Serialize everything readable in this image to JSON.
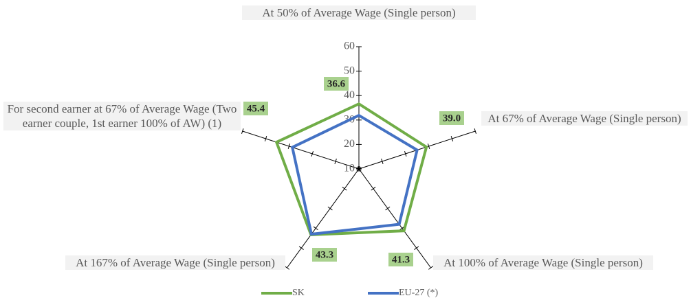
{
  "chart_data": {
    "type": "radar",
    "categories": [
      "At 50% of Average Wage (Single person)",
      "At 67% of Average Wage (Single person)",
      "At 100% of Average Wage (Single person)",
      "At 167% of Average Wage (Single person)",
      "For second earner at 67% of Average Wage (Two earner couple, 1st earner 100% of AW) (1)"
    ],
    "series": [
      {
        "name": "SK",
        "color": "#70ad47",
        "values": [
          36.6,
          39.0,
          41.3,
          43.3,
          45.4
        ],
        "value_labels": [
          "36.6",
          "39.0",
          "41.3",
          "43.3",
          "45.4"
        ]
      },
      {
        "name": "EU-27 (*)",
        "color": "#4472c4",
        "values": [
          31.9,
          35,
          38,
          43,
          38.6
        ]
      }
    ],
    "ylim": [
      10,
      60
    ],
    "yticks": [
      10,
      20,
      30,
      40,
      50,
      60
    ],
    "legend": "bottom"
  }
}
